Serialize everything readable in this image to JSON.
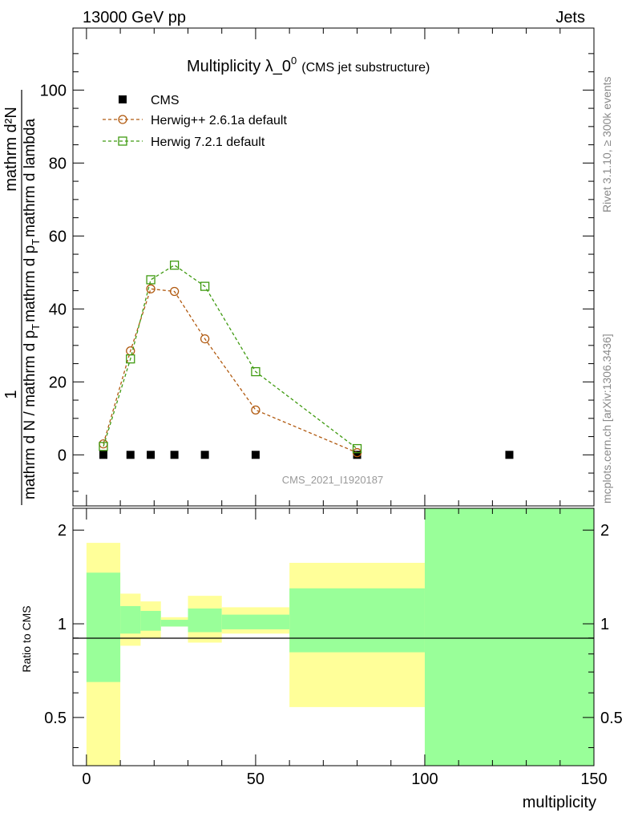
{
  "header": {
    "energy_label": "13000 GeV pp",
    "category_label": "Jets"
  },
  "side_labels": {
    "rivet": "Rivet 3.1.10, ≥ 300k events",
    "mcplots": "mcplots.cern.ch [arXiv:1306.3436]"
  },
  "chart_data": [
    {
      "type": "scatter",
      "title": "Multiplicity λ_0",
      "title_superscript": "0",
      "subtitle": "(CMS jet substructure)",
      "analysis_label": "CMS_2021_I1920187",
      "ylabel_numerator": "1",
      "ylabel_numerator_tail": "mathrm d²N",
      "ylabel_denominator": "mathrm d N / mathrm d p",
      "ylabel_mid": "mathrm d p",
      "ylabel_tail": "mathrm d lambda",
      "ylabel_subscript": "T",
      "ylim": [
        -14,
        117
      ],
      "xlim": [
        -4,
        150
      ],
      "yticks": [
        0,
        20,
        40,
        60,
        80,
        100
      ],
      "ytick_labels": [
        "0",
        "20",
        "40",
        "60",
        "80",
        "100"
      ],
      "legend": {
        "position": "top-left",
        "entries": [
          "CMS",
          "Herwig++ 2.6.1a default",
          "Herwig 7.2.1 default"
        ]
      },
      "series": [
        {
          "name": "CMS",
          "color": "#000000",
          "marker": "square-filled",
          "x": [
            5,
            13,
            19,
            26,
            35,
            50,
            80,
            125
          ],
          "y": [
            0,
            0,
            0,
            0,
            0,
            0,
            0,
            0
          ]
        },
        {
          "name": "Herwig++ 2.6.1a default",
          "color": "#b15a10",
          "marker": "circle-open",
          "x": [
            5,
            13,
            19,
            26,
            35,
            50,
            80
          ],
          "y": [
            3,
            28.5,
            45.5,
            44.8,
            31.8,
            12.3,
            0.6
          ]
        },
        {
          "name": "Herwig 7.2.1 default",
          "color": "#3f9a10",
          "marker": "square-open",
          "x": [
            5,
            13,
            19,
            26,
            35,
            50,
            80
          ],
          "y": [
            2.3,
            26.3,
            48,
            52,
            46.2,
            22.8,
            1.7
          ]
        }
      ]
    },
    {
      "type": "area",
      "ylabel": "Ratio to CMS",
      "xlabel": "multiplicity",
      "ylim": [
        0.35,
        2.35
      ],
      "xlim": [
        -4,
        150
      ],
      "yticks": [
        0.5,
        1,
        2
      ],
      "ytick_labels": [
        "0.5",
        "1",
        "2"
      ],
      "xticks": [
        0,
        50,
        100,
        150
      ],
      "xtick_labels": [
        "0",
        "50",
        "100",
        "150"
      ],
      "reference_line": 1,
      "band_colors": {
        "outer": "#ffff99",
        "inner": "#99ff99"
      },
      "bins": [
        {
          "x0": 0,
          "x1": 10,
          "yellow": [
            0.35,
            1.82
          ],
          "green": [
            0.65,
            1.46
          ]
        },
        {
          "x0": 10,
          "x1": 16,
          "yellow": [
            0.85,
            1.25
          ],
          "green": [
            0.93,
            1.14
          ]
        },
        {
          "x0": 16,
          "x1": 22,
          "yellow": [
            0.9,
            1.18
          ],
          "green": [
            0.95,
            1.1
          ]
        },
        {
          "x0": 22,
          "x1": 30,
          "yellow": [
            0.98,
            1.05
          ],
          "green": [
            0.98,
            1.03
          ]
        },
        {
          "x0": 30,
          "x1": 40,
          "yellow": [
            0.87,
            1.23
          ],
          "green": [
            0.94,
            1.12
          ]
        },
        {
          "x0": 40,
          "x1": 60,
          "yellow": [
            0.93,
            1.13
          ],
          "green": [
            0.96,
            1.07
          ]
        },
        {
          "x0": 60,
          "x1": 100,
          "yellow": [
            0.54,
            1.57
          ],
          "green": [
            0.81,
            1.3
          ]
        },
        {
          "x0": 100,
          "x1": 150,
          "yellow": [
            0.35,
            2.35
          ],
          "green": [
            0.35,
            2.35
          ]
        }
      ]
    }
  ]
}
